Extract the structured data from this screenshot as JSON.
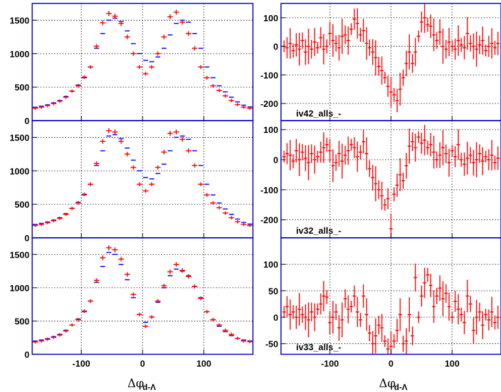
{
  "figure": {
    "x_axis_title": "Δφ",
    "x_axis_subscript": "d-Λ"
  },
  "colors": {
    "frame": "#0000cc",
    "series_blue": "#0000ff",
    "series_red": "#ff0000",
    "grid": "#000000"
  },
  "chart_data": [
    {
      "type": "scatter",
      "panel": "left-top",
      "xlim": [
        -180,
        180
      ],
      "ylim": [
        0,
        1750
      ],
      "yticks": [
        0,
        500,
        1000,
        1500
      ],
      "xticks": [
        -100,
        0,
        100
      ],
      "grid": true,
      "x": [
        -175,
        -165,
        -155,
        -145,
        -135,
        -125,
        -115,
        -105,
        -95,
        -85,
        -75,
        -65,
        -55,
        -45,
        -35,
        -25,
        -15,
        -5,
        5,
        15,
        25,
        35,
        45,
        55,
        65,
        75,
        85,
        95,
        105,
        115,
        125,
        135,
        145,
        155,
        165,
        175
      ],
      "series": [
        {
          "values": [
            200,
            215,
            235,
            265,
            300,
            360,
            440,
            530,
            640,
            800,
            1080,
            1300,
            1500,
            1530,
            1480,
            1340,
            1150,
            1000,
            900,
            880,
            950,
            1080,
            1280,
            1450,
            1500,
            1470,
            1300,
            1080,
            800,
            640,
            520,
            430,
            350,
            280,
            230,
            205
          ]
        },
        {
          "values": [
            185,
            200,
            225,
            255,
            290,
            350,
            440,
            520,
            650,
            800,
            1110,
            1460,
            1600,
            1560,
            1450,
            1250,
            1000,
            800,
            700,
            800,
            1000,
            1250,
            1550,
            1620,
            1470,
            1300,
            1080,
            800,
            640,
            520,
            450,
            370,
            300,
            240,
            200,
            185
          ]
        }
      ]
    },
    {
      "type": "scatter",
      "panel": "right-top",
      "xlim": [
        -180,
        180
      ],
      "ylim": [
        -260,
        150
      ],
      "yticks": [
        -200,
        -100,
        0,
        100
      ],
      "xticks": [
        -100,
        0,
        100
      ],
      "grid": true,
      "label": "iv42_alls_-",
      "x": [
        -175,
        -170,
        -165,
        -160,
        -155,
        -150,
        -145,
        -140,
        -135,
        -130,
        -125,
        -120,
        -115,
        -110,
        -105,
        -100,
        -95,
        -90,
        -85,
        -80,
        -75,
        -70,
        -65,
        -60,
        -55,
        -50,
        -45,
        -40,
        -35,
        -30,
        -25,
        -20,
        -15,
        -10,
        -5,
        0,
        5,
        10,
        15,
        20,
        25,
        30,
        35,
        40,
        45,
        50,
        55,
        60,
        65,
        70,
        75,
        80,
        85,
        90,
        95,
        100,
        105,
        110,
        115,
        120,
        125,
        130,
        135,
        140,
        145,
        150,
        155,
        160,
        165,
        170,
        175
      ],
      "series": [
        {
          "name": "",
          "values": [
            0,
            -5,
            10,
            -15,
            5,
            -10,
            20,
            -20,
            0,
            -10,
            15,
            -5,
            30,
            -10,
            0,
            45,
            20,
            10,
            -5,
            35,
            40,
            20,
            60,
            95,
            80,
            40,
            55,
            10,
            -5,
            -20,
            -40,
            -70,
            -85,
            -110,
            -140,
            -160,
            -170,
            -190,
            -150,
            -110,
            -60,
            -20,
            -60,
            -20,
            35,
            85,
            100,
            75,
            70,
            40,
            20,
            50,
            0,
            -10,
            15,
            0,
            -10,
            20,
            5,
            -5,
            45,
            10,
            0,
            -10,
            5,
            20,
            -15,
            0,
            10,
            -5,
            10
          ]
        }
      ]
    },
    {
      "type": "scatter",
      "panel": "left-middle",
      "xlim": [
        -180,
        180
      ],
      "ylim": [
        0,
        1750
      ],
      "yticks": [
        0,
        500,
        1000,
        1500
      ],
      "xticks": [
        -100,
        0,
        100
      ],
      "grid": true,
      "x": [
        -175,
        -165,
        -155,
        -145,
        -135,
        -125,
        -115,
        -105,
        -95,
        -85,
        -75,
        -65,
        -55,
        -45,
        -35,
        -25,
        -15,
        -5,
        5,
        15,
        25,
        35,
        45,
        55,
        65,
        75,
        85,
        95,
        105,
        115,
        125,
        135,
        145,
        155,
        165,
        175
      ],
      "series": [
        {
          "values": [
            200,
            215,
            235,
            265,
            300,
            360,
            440,
            530,
            640,
            800,
            1080,
            1300,
            1520,
            1540,
            1480,
            1340,
            1160,
            1000,
            900,
            880,
            960,
            1100,
            1300,
            1500,
            1520,
            1470,
            1300,
            1080,
            800,
            640,
            520,
            430,
            350,
            280,
            230,
            205
          ]
        },
        {
          "values": [
            185,
            200,
            225,
            255,
            290,
            350,
            440,
            520,
            650,
            800,
            1110,
            1440,
            1600,
            1580,
            1440,
            1250,
            1050,
            800,
            700,
            800,
            1050,
            1280,
            1560,
            1580,
            1470,
            1300,
            1080,
            800,
            640,
            520,
            450,
            370,
            300,
            240,
            200,
            185
          ]
        }
      ]
    },
    {
      "type": "scatter",
      "panel": "right-middle",
      "xlim": [
        -180,
        180
      ],
      "ylim": [
        -260,
        130
      ],
      "yticks": [
        -200,
        -100,
        0,
        100
      ],
      "xticks": [
        -100,
        0,
        100
      ],
      "grid": true,
      "label": "iv32_alls_-",
      "x": [
        -175,
        -170,
        -165,
        -160,
        -155,
        -150,
        -145,
        -140,
        -135,
        -130,
        -125,
        -120,
        -115,
        -110,
        -105,
        -100,
        -95,
        -90,
        -85,
        -80,
        -75,
        -70,
        -65,
        -60,
        -55,
        -50,
        -45,
        -40,
        -35,
        -30,
        -25,
        -20,
        -15,
        -10,
        -5,
        0,
        5,
        10,
        15,
        20,
        25,
        30,
        35,
        40,
        45,
        50,
        55,
        60,
        65,
        70,
        75,
        80,
        85,
        90,
        95,
        100,
        105,
        110,
        115,
        120,
        125,
        130,
        135,
        140,
        145,
        150,
        155,
        160,
        165,
        170,
        175
      ],
      "series": [
        {
          "name": "",
          "values": [
            10,
            20,
            15,
            -5,
            30,
            0,
            25,
            5,
            -10,
            20,
            0,
            10,
            25,
            40,
            50,
            30,
            -20,
            -10,
            20,
            -5,
            15,
            30,
            50,
            40,
            10,
            25,
            60,
            20,
            -30,
            -60,
            -80,
            -100,
            -120,
            -150,
            -130,
            -230,
            -115,
            -85,
            -50,
            -70,
            -20,
            45,
            60,
            40,
            75,
            55,
            65,
            40,
            50,
            25,
            0,
            15,
            40,
            20,
            -10,
            30,
            10,
            50,
            0,
            -15,
            5,
            15,
            -10,
            0,
            20,
            -5,
            10,
            0,
            15,
            -10,
            5
          ]
        }
      ]
    },
    {
      "type": "scatter",
      "panel": "left-bottom",
      "xlim": [
        -180,
        180
      ],
      "ylim": [
        0,
        1750
      ],
      "yticks": [
        0,
        500,
        1000,
        1500
      ],
      "xticks": [
        -100,
        0,
        100
      ],
      "grid": true,
      "x": [
        -175,
        -165,
        -155,
        -145,
        -135,
        -125,
        -115,
        -105,
        -95,
        -85,
        -75,
        -65,
        -55,
        -45,
        -35,
        -25,
        -15,
        -5,
        5,
        15,
        25,
        35,
        45,
        55,
        65,
        75,
        85,
        95,
        105,
        115,
        125,
        135,
        145,
        155,
        165,
        175
      ],
      "series": [
        {
          "values": [
            200,
            215,
            235,
            265,
            300,
            360,
            440,
            530,
            640,
            800,
            1080,
            1320,
            1530,
            1500,
            1350,
            1120,
            850,
            600,
            480,
            560,
            780,
            1000,
            1180,
            1280,
            1250,
            1180,
            1020,
            850,
            640,
            520,
            420,
            340,
            280,
            240,
            215,
            200
          ]
        },
        {
          "values": [
            185,
            200,
            225,
            255,
            290,
            350,
            440,
            520,
            650,
            800,
            1110,
            1450,
            1600,
            1570,
            1430,
            1200,
            900,
            600,
            420,
            560,
            800,
            1030,
            1240,
            1350,
            1260,
            1170,
            1020,
            840,
            640,
            520,
            440,
            360,
            300,
            240,
            200,
            190
          ]
        }
      ]
    },
    {
      "type": "scatter",
      "panel": "right-bottom",
      "xlim": [
        -180,
        180
      ],
      "ylim": [
        -70,
        150
      ],
      "yticks": [
        -50,
        0,
        50,
        100
      ],
      "xticks": [
        -100,
        0,
        100
      ],
      "grid": true,
      "label": "iv33_alls_-",
      "x": [
        -175,
        -170,
        -165,
        -160,
        -155,
        -150,
        -145,
        -140,
        -135,
        -130,
        -125,
        -120,
        -115,
        -110,
        -105,
        -100,
        -95,
        -90,
        -85,
        -80,
        -75,
        -70,
        -65,
        -60,
        -55,
        -50,
        -45,
        -40,
        -35,
        -30,
        -25,
        -20,
        -15,
        -10,
        -5,
        0,
        5,
        10,
        15,
        20,
        25,
        30,
        35,
        40,
        45,
        50,
        55,
        60,
        65,
        70,
        75,
        80,
        85,
        90,
        95,
        100,
        105,
        110,
        115,
        120,
        125,
        130,
        135,
        140,
        145,
        150,
        155,
        160,
        165,
        170,
        175
      ],
      "series": [
        {
          "name": "",
          "values": [
            10,
            20,
            5,
            10,
            0,
            15,
            5,
            0,
            -5,
            10,
            0,
            15,
            25,
            40,
            38,
            -10,
            0,
            10,
            -20,
            -5,
            35,
            15,
            20,
            40,
            10,
            -5,
            40,
            5,
            -30,
            -50,
            -35,
            -15,
            -20,
            -45,
            -60,
            -55,
            -45,
            -25,
            5,
            -50,
            -45,
            5,
            -35,
            75,
            0,
            40,
            65,
            80,
            60,
            20,
            40,
            55,
            35,
            45,
            20,
            0,
            30,
            15,
            5,
            -10,
            40,
            25,
            -25,
            0,
            10,
            -15,
            5,
            -5,
            10,
            -10,
            0
          ]
        }
      ]
    }
  ]
}
